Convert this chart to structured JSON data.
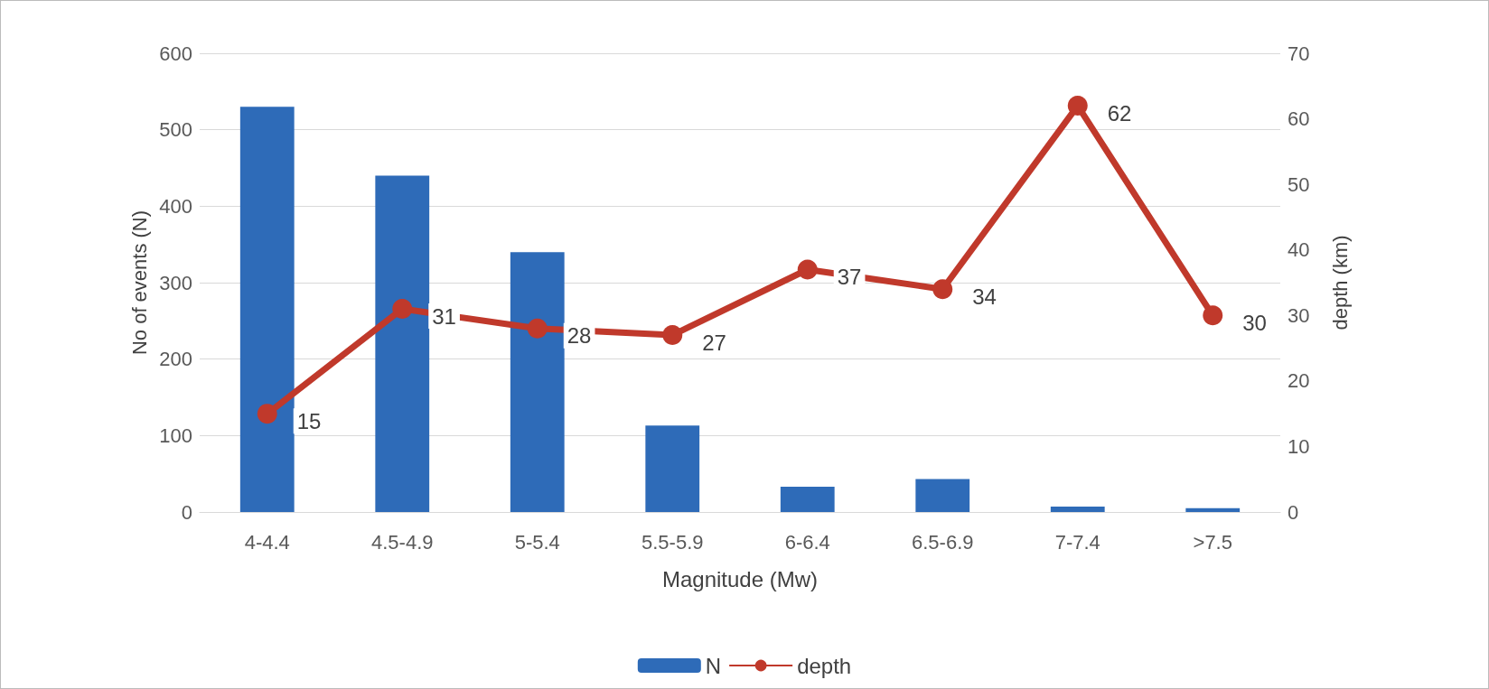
{
  "chart_data": {
    "type": "bar",
    "xlabel": "Magnitude (Mw)",
    "ylabel": "No of events (N)",
    "y2label": "depth (km)",
    "categories": [
      "4-4.4",
      "4.5-4.9",
      "5-5.4",
      "5.5-5.9",
      "6-6.4",
      "6.5-6.9",
      "7-7.4",
      ">7.5"
    ],
    "series": [
      {
        "name": "N",
        "color": "#2e6bb8",
        "values": [
          530,
          440,
          340,
          113,
          33,
          43,
          7,
          5
        ]
      },
      {
        "name": "depth",
        "type": "line",
        "axis": "y2",
        "color": "#c0392b",
        "marker": "circle",
        "data_labels": true,
        "values": [
          15,
          31,
          28,
          27,
          37,
          34,
          62,
          30
        ]
      }
    ],
    "ylim": [
      0,
      600
    ],
    "yticks": [
      0,
      100,
      200,
      300,
      400,
      500,
      600
    ],
    "y2lim": [
      0,
      70
    ],
    "y2ticks": [
      0,
      10,
      20,
      30,
      40,
      50,
      60,
      70
    ],
    "grid": "y",
    "legend": "bottom"
  }
}
